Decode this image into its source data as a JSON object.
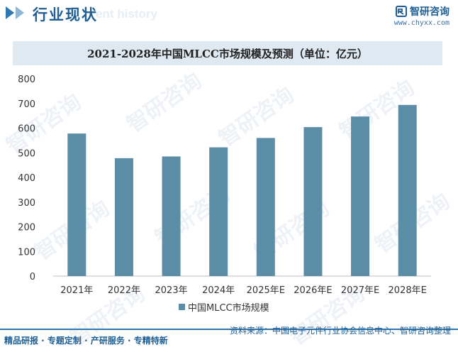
{
  "header": {
    "section_title": "行业现状",
    "section_bg_text": "ent history",
    "brand_name": "智研咨询",
    "brand_url": "www.chyxx.com"
  },
  "watermark": "智研咨询",
  "footer": {
    "left_text": "精品研报 · 专题定制 · 产研服务 · 专精特新",
    "source_text": "资料来源：中国电子元件行业协会信息中心、智研咨询整理"
  },
  "colors": {
    "bar": "#5b8ea6",
    "accent": "#2f78b5",
    "title_bar_bg": "#dfe9f2"
  },
  "chart_data": {
    "type": "bar",
    "title": "2021-2028年中国MLCC市场规模及预测（单位：亿元）",
    "categories": [
      "2021年",
      "2022年",
      "2023年",
      "2024年",
      "2025年E",
      "2026年E",
      "2027年E",
      "2028年E"
    ],
    "series": [
      {
        "name": "中国MLCC市场规模",
        "values": [
          578,
          478,
          485,
          522,
          560,
          604,
          647,
          694
        ]
      }
    ],
    "yticks": [
      0,
      100,
      200,
      300,
      400,
      500,
      600,
      700,
      800
    ],
    "ylim": [
      0,
      800
    ],
    "grid": false,
    "legend_position": "bottom"
  }
}
